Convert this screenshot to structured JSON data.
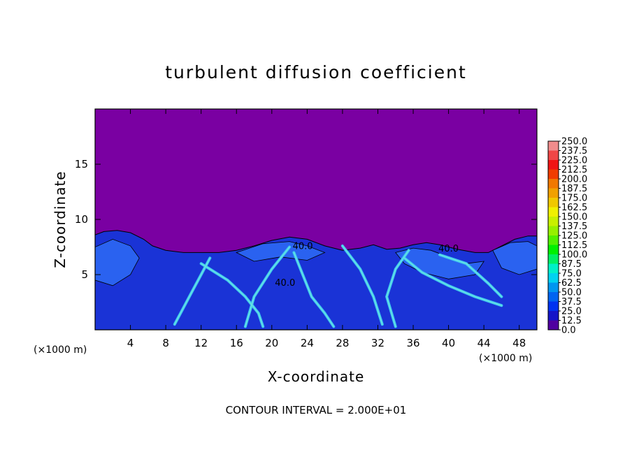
{
  "chart_data": {
    "type": "heatmap",
    "title": "turbulent diffusion coefficient",
    "xlabel": "X-coordinate",
    "ylabel": "Z-coordinate",
    "x_unit": "(×1000 m)",
    "y_unit": "(×1000 m)",
    "xlim": [
      0,
      50
    ],
    "ylim": [
      0,
      20
    ],
    "x_ticks": [
      "4",
      "8",
      "12",
      "16",
      "20",
      "24",
      "28",
      "32",
      "36",
      "40",
      "44",
      "48"
    ],
    "y_ticks": [
      "5",
      "10",
      "15"
    ],
    "colorbar": {
      "levels": [
        "250.0",
        "237.5",
        "225.0",
        "212.5",
        "200.0",
        "187.5",
        "175.0",
        "162.5",
        "150.0",
        "137.5",
        "125.0",
        "112.5",
        "100.0",
        "87.5",
        "75.0",
        "62.5",
        "50.0",
        "37.5",
        "25.0",
        "12.5",
        "0.0"
      ],
      "colors": [
        "#f08c8c",
        "#f04646",
        "#f01414",
        "#f03c00",
        "#f07800",
        "#f0a000",
        "#f0c800",
        "#f0f000",
        "#c8f000",
        "#96f000",
        "#50f000",
        "#00f000",
        "#00f064",
        "#00f0c8",
        "#00d2f0",
        "#0096f0",
        "#0064f0",
        "#0032f0",
        "#1414c8",
        "#5000a0"
      ]
    },
    "contour_labels": [
      {
        "text": "40.0",
        "x": 23.5,
        "z": 7.3
      },
      {
        "text": "40.0",
        "x": 21.5,
        "z": 4.0
      },
      {
        "text": "40.0",
        "x": 40.0,
        "z": 7.1
      }
    ],
    "background_color": "#7a00a2",
    "field_colors": {
      "low": "#1a33d6",
      "mid": "#2a62f0",
      "high": "#3fc8f0",
      "peak": "#6fe6e0"
    },
    "contour_interval_text": "CONTOUR INTERVAL = 2.000E+01"
  }
}
